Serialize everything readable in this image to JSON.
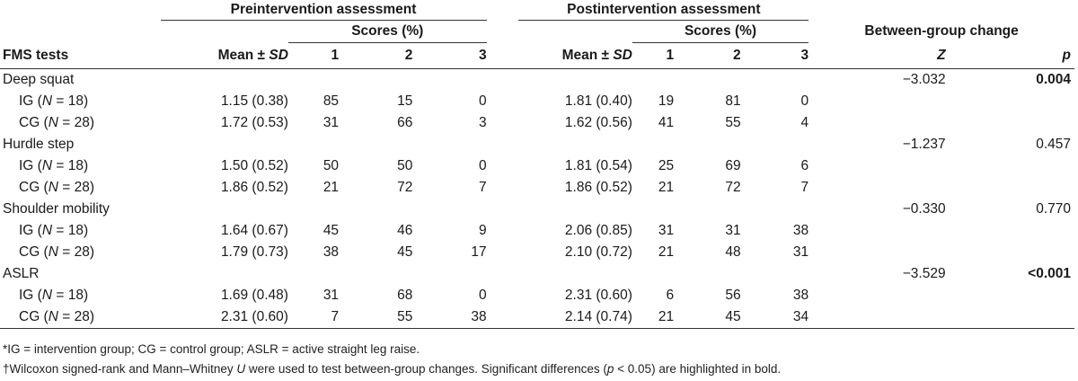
{
  "header": {
    "pre_group": "Preintervention assessment",
    "post_group": "Postintervention assessment",
    "between_group": "Between-group change",
    "scores_pct": "Scores (%)",
    "fms_tests": "FMS tests",
    "mean_label": "Mean ± ",
    "sd_label": "SD",
    "score_cols": [
      "1",
      "2",
      "3"
    ],
    "z_label": "Z",
    "p_label": "p"
  },
  "rows": [
    {
      "type": "test",
      "name": "Deep squat",
      "z": "−3.032",
      "p": "0.004",
      "p_bold": true
    },
    {
      "type": "group",
      "prefix": "IG (",
      "n_italic": "N",
      "suffix": " = 18)",
      "pre_mean": "1.15 (0.38)",
      "pre_scores": [
        "85",
        "15",
        "0"
      ],
      "post_mean": "1.81 (0.40)",
      "post_scores": [
        "19",
        "81",
        "0"
      ]
    },
    {
      "type": "group",
      "prefix": "CG (",
      "n_italic": "N",
      "suffix": " = 28)",
      "pre_mean": "1.72 (0.53)",
      "pre_scores": [
        "31",
        "66",
        "3"
      ],
      "post_mean": "1.62 (0.56)",
      "post_scores": [
        "41",
        "55",
        "4"
      ]
    },
    {
      "type": "test",
      "name": "Hurdle step",
      "z": "−1.237",
      "p": "0.457",
      "p_bold": false
    },
    {
      "type": "group",
      "prefix": "IG (",
      "n_italic": "N",
      "suffix": " = 18)",
      "pre_mean": "1.50 (0.52)",
      "pre_scores": [
        "50",
        "50",
        "0"
      ],
      "post_mean": "1.81 (0.54)",
      "post_scores": [
        "25",
        "69",
        "6"
      ]
    },
    {
      "type": "group",
      "prefix": "CG (",
      "n_italic": "N",
      "suffix": " = 28)",
      "pre_mean": "1.86 (0.52)",
      "pre_scores": [
        "21",
        "72",
        "7"
      ],
      "post_mean": "1.86 (0.52)",
      "post_scores": [
        "21",
        "72",
        "7"
      ]
    },
    {
      "type": "test",
      "name": "Shoulder mobility",
      "z": "−0.330",
      "p": "0.770",
      "p_bold": false
    },
    {
      "type": "group",
      "prefix": "IG (",
      "n_italic": "N",
      "suffix": " = 18)",
      "pre_mean": "1.64 (0.67)",
      "pre_scores": [
        "45",
        "46",
        "9"
      ],
      "post_mean": "2.06 (0.85)",
      "post_scores": [
        "31",
        "31",
        "38"
      ]
    },
    {
      "type": "group",
      "prefix": "CG (",
      "n_italic": "N",
      "suffix": " = 28)",
      "pre_mean": "1.79 (0.73)",
      "pre_scores": [
        "38",
        "45",
        "17"
      ],
      "post_mean": "2.10 (0.72)",
      "post_scores": [
        "21",
        "48",
        "31"
      ]
    },
    {
      "type": "test",
      "name": "ASLR",
      "z": "−3.529",
      "p": "<0.001",
      "p_bold": true
    },
    {
      "type": "group",
      "prefix": "IG (",
      "n_italic": "N",
      "suffix": " = 18)",
      "pre_mean": "1.69 (0.48)",
      "pre_scores": [
        "31",
        "68",
        "0"
      ],
      "post_mean": "2.31 (0.60)",
      "post_scores": [
        "6",
        "56",
        "38"
      ]
    },
    {
      "type": "group",
      "prefix": "CG (",
      "n_italic": "N",
      "suffix": " = 28)",
      "pre_mean": "2.31 (0.60)",
      "pre_scores": [
        "7",
        "55",
        "38"
      ],
      "post_mean": "2.14 (0.74)",
      "post_scores": [
        "21",
        "45",
        "34"
      ]
    }
  ],
  "footnotes": {
    "note1": "*IG = intervention group; CG = control group; ASLR = active straight leg raise.",
    "note2_a": "†Wilcoxon signed-rank and Mann–Whitney ",
    "note2_u": "U",
    "note2_b": " were used to test between-group changes. Significant differences (",
    "note2_p": "p",
    "note2_c": " < 0.05) are highlighted in bold."
  }
}
